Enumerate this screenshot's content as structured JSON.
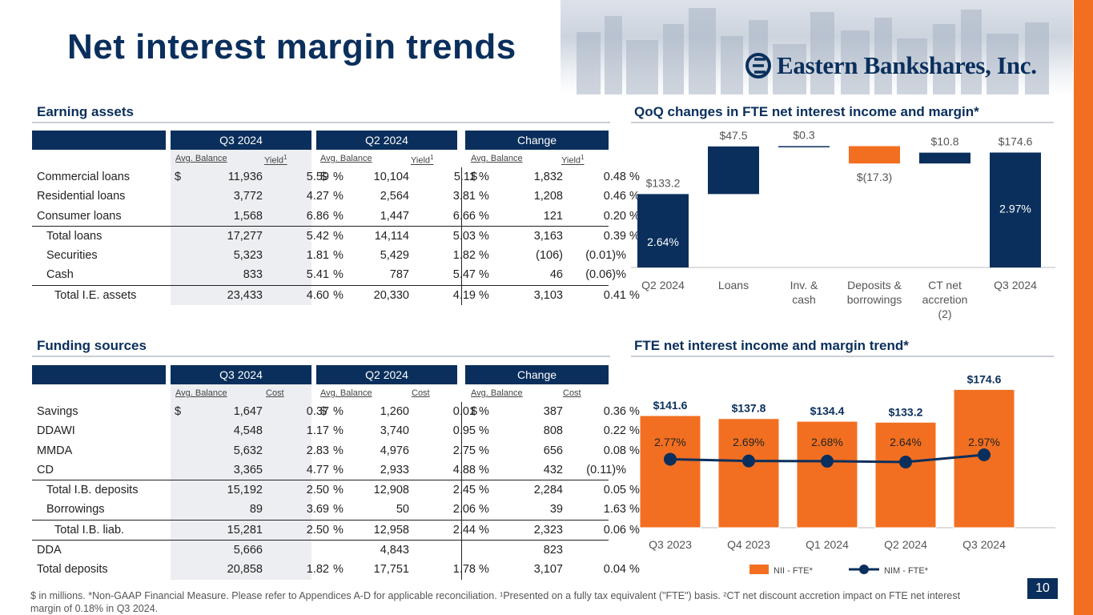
{
  "page": {
    "title": "Net interest margin trends",
    "logo_text": "Eastern Bankshares, Inc.",
    "page_number": "10",
    "footnote": "$ in millions.  *Non-GAAP Financial Measure. Please refer to Appendices A-D for applicable reconciliation. ¹Presented on a fully tax equivalent (\"FTE\") basis. ²CT net discount accretion impact on FTE net interest margin of 0.18% in Q3 2024."
  },
  "colors": {
    "navy": "#0a2f5c",
    "orange": "#f26f21"
  },
  "earning": {
    "title": "Earning assets",
    "periods": [
      "Q3 2024",
      "Q2 2024",
      "Change"
    ],
    "sub": [
      "Avg. Balance",
      "Yield",
      "Avg. Balance",
      "Yield",
      "Avg. Balance",
      "Yield"
    ],
    "sup": "1",
    "rows": [
      {
        "label": "Commercial loans",
        "c1": "$",
        "b1": "11,936",
        "y1": "5.59",
        "p1": "%",
        "c2": "$",
        "b2": "10,104",
        "y2": "5.11",
        "p2": "%",
        "c3": "$",
        "b3": "1,832",
        "y3": "0.48",
        "p3": "%"
      },
      {
        "label": "Residential loans",
        "b1": "3,772",
        "y1": "4.27",
        "p1": "%",
        "b2": "2,564",
        "y2": "3.81",
        "p2": "%",
        "b3": "1,208",
        "y3": "0.46",
        "p3": "%"
      },
      {
        "label": "Consumer loans",
        "b1": "1,568",
        "y1": "6.86",
        "p1": "%",
        "b2": "1,447",
        "y2": "6.66",
        "p2": "%",
        "b3": "121",
        "y3": "0.20",
        "p3": "%"
      },
      {
        "label": "Total loans",
        "b1": "17,277",
        "y1": "5.42",
        "p1": "%",
        "b2": "14,114",
        "y2": "5.03",
        "p2": "%",
        "b3": "3,163",
        "y3": "0.39",
        "p3": "%"
      },
      {
        "label": "Securities",
        "b1": "5,323",
        "y1": "1.81",
        "p1": "%",
        "b2": "5,429",
        "y2": "1.82",
        "p2": "%",
        "b3": "(106)",
        "y3": "(0.01)%"
      },
      {
        "label": "Cash",
        "b1": "833",
        "y1": "5.41",
        "p1": "%",
        "b2": "787",
        "y2": "5.47",
        "p2": "%",
        "b3": "46",
        "y3": "(0.06)%"
      },
      {
        "label": "Total I.E. assets",
        "b1": "23,433",
        "y1": "4.60",
        "p1": "%",
        "b2": "20,330",
        "y2": "4.19",
        "p2": "%",
        "b3": "3,103",
        "y3": "0.41",
        "p3": "%"
      }
    ]
  },
  "funding": {
    "title": "Funding sources",
    "periods": [
      "Q3 2024",
      "Q2 2024",
      "Change"
    ],
    "sub": [
      "Avg. Balance",
      "Cost",
      "Avg. Balance",
      "Cost",
      "Avg. Balance",
      "Cost"
    ],
    "rows": [
      {
        "label": "Savings",
        "c1": "$",
        "b1": "1,647",
        "y1": "0.37",
        "p1": "%",
        "c2": "$",
        "b2": "1,260",
        "y2": "0.01",
        "p2": "%",
        "c3": "$",
        "b3": "387",
        "y3": "0.36",
        "p3": "%"
      },
      {
        "label": "DDAWI",
        "b1": "4,548",
        "y1": "1.17",
        "p1": "%",
        "b2": "3,740",
        "y2": "0.95",
        "p2": "%",
        "b3": "808",
        "y3": "0.22",
        "p3": "%"
      },
      {
        "label": "MMDA",
        "b1": "5,632",
        "y1": "2.83",
        "p1": "%",
        "b2": "4,976",
        "y2": "2.75",
        "p2": "%",
        "b3": "656",
        "y3": "0.08",
        "p3": "%"
      },
      {
        "label": "CD",
        "b1": "3,365",
        "y1": "4.77",
        "p1": "%",
        "b2": "2,933",
        "y2": "4.88",
        "p2": "%",
        "b3": "432",
        "y3": "(0.11)%"
      },
      {
        "label": "Total I.B. deposits",
        "b1": "15,192",
        "y1": "2.50",
        "p1": "%",
        "b2": "12,908",
        "y2": "2.45",
        "p2": "%",
        "b3": "2,284",
        "y3": "0.05",
        "p3": "%"
      },
      {
        "label": "Borrowings",
        "b1": "89",
        "y1": "3.69",
        "p1": "%",
        "b2": "50",
        "y2": "2.06",
        "p2": "%",
        "b3": "39",
        "y3": "1.63",
        "p3": "%"
      },
      {
        "label": "Total I.B. liab.",
        "b1": "15,281",
        "y1": "2.50",
        "p1": "%",
        "b2": "12,958",
        "y2": "2.44",
        "p2": "%",
        "b3": "2,323",
        "y3": "0.06",
        "p3": "%"
      },
      {
        "label": "DDA",
        "b1": "5,666",
        "b2": "4,843",
        "b3": "823"
      },
      {
        "label": "Total deposits",
        "b1": "20,858",
        "y1": "1.82",
        "p1": "%",
        "b2": "17,751",
        "y2": "1.78",
        "p2": "%",
        "b3": "3,107",
        "y3": "0.04",
        "p3": "%"
      }
    ]
  },
  "chart_data": [
    {
      "type": "bar",
      "subtype": "waterfall",
      "title": "QoQ changes in FTE net interest income and margin*",
      "categories": [
        "Q2 2024",
        "Loans",
        "Inv. & cash",
        "Deposits & borrowings",
        "CT net accretion (2)",
        "Q3 2024"
      ],
      "values": [
        133.2,
        47.5,
        0.3,
        -17.3,
        10.8,
        174.6
      ],
      "value_labels": [
        "$133.2",
        "$47.5",
        "$0.3",
        "$(17.3)",
        "$10.8",
        "$174.6"
      ],
      "margin_labels": [
        "2.64%",
        "",
        "",
        "",
        "",
        "2.97%"
      ],
      "kinds": [
        "total",
        "delta",
        "delta",
        "delta",
        "delta",
        "total"
      ]
    },
    {
      "type": "bar",
      "title": "FTE net interest income and margin trend*",
      "categories": [
        "Q3 2023",
        "Q4 2023",
        "Q1 2024",
        "Q2 2024",
        "Q3 2024"
      ],
      "series": [
        {
          "name": "NII - FTE*",
          "type": "bar",
          "values": [
            141.6,
            137.8,
            134.4,
            133.2,
            174.6
          ],
          "labels": [
            "$141.6",
            "$137.8",
            "$134.4",
            "$133.2",
            "$174.6"
          ]
        },
        {
          "name": "NIM - FTE*",
          "type": "line",
          "values": [
            2.77,
            2.69,
            2.68,
            2.64,
            2.97
          ],
          "labels": [
            "2.77%",
            "2.69%",
            "2.68%",
            "2.64%",
            "2.97%"
          ]
        }
      ],
      "legend": "bottom"
    }
  ]
}
